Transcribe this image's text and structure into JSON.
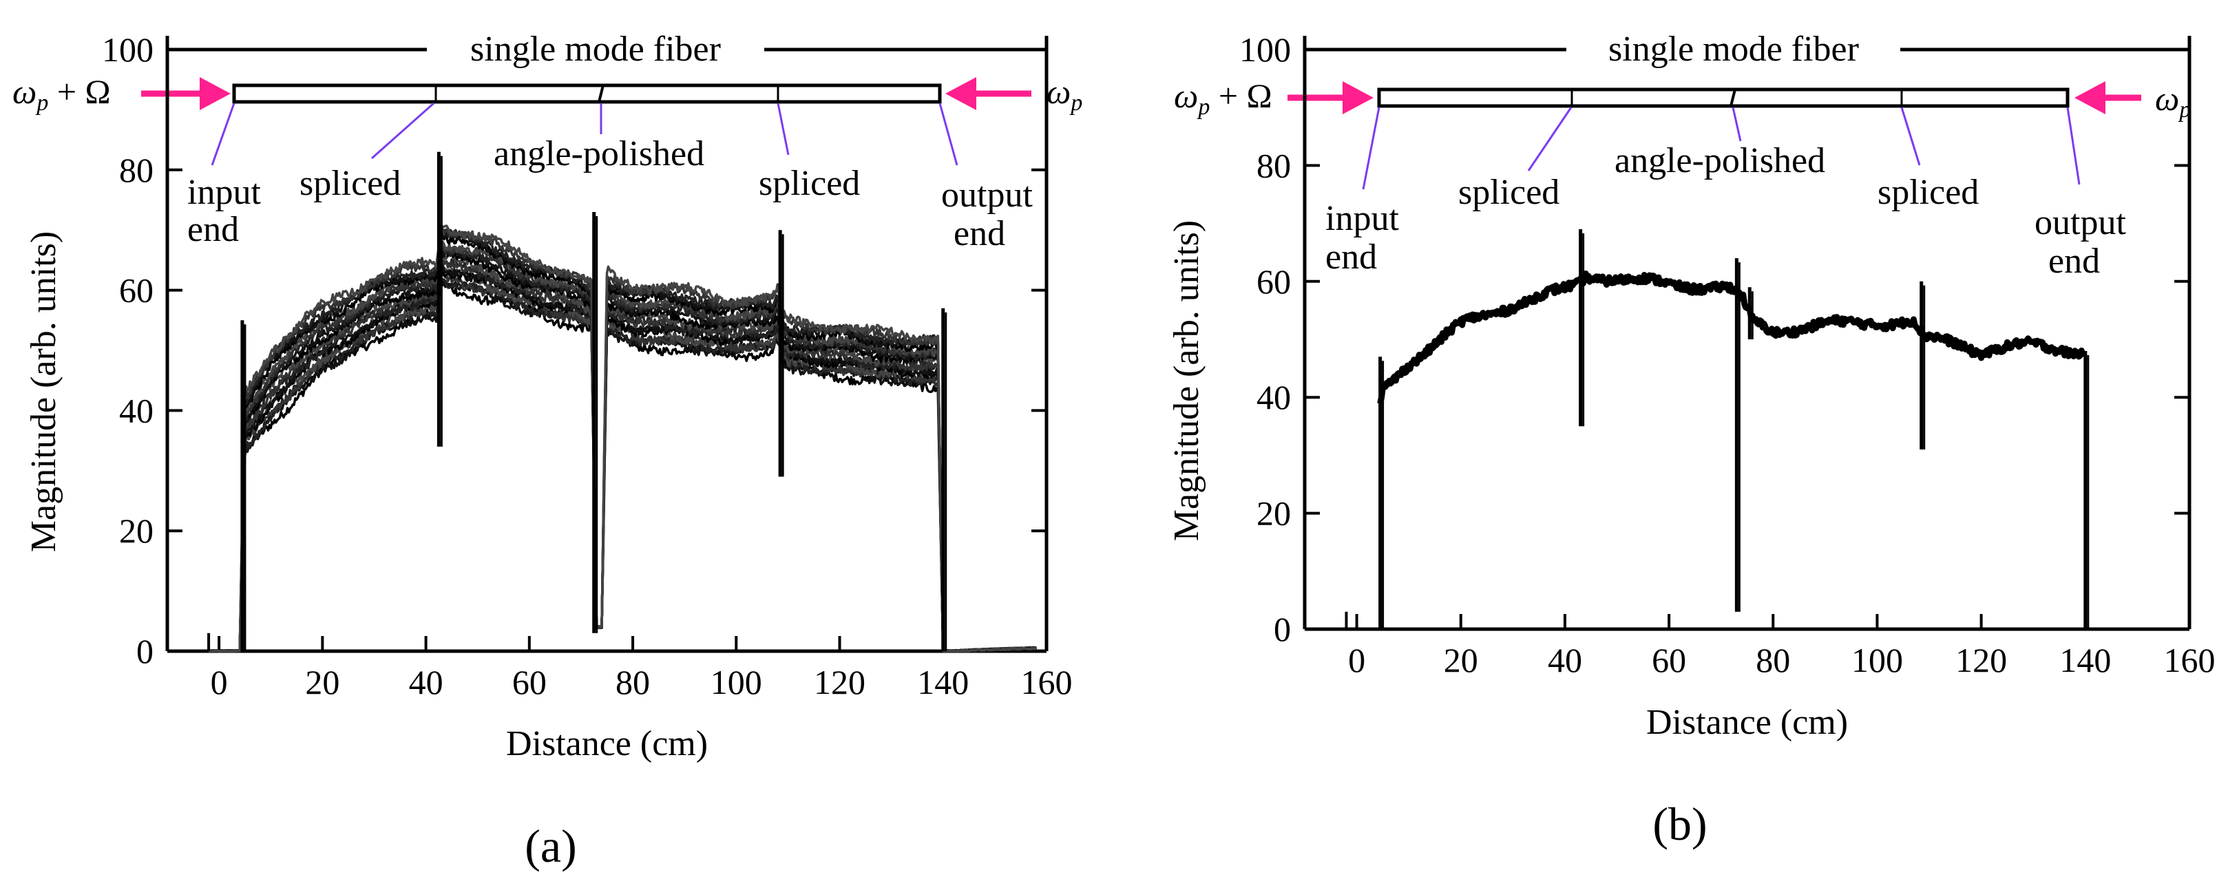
{
  "figure": {
    "panels": [
      {
        "id": "a",
        "caption": "(a)"
      },
      {
        "id": "b",
        "caption": "(b)"
      }
    ]
  },
  "fiber_diagram": {
    "title": "single mode fiber",
    "left_freq_main": "ω",
    "left_freq_sub": "p",
    "left_freq_suffix": " + Ω",
    "right_freq_main": "ω",
    "right_freq_sub": "p",
    "arrow_color": "#ff1f8e",
    "leader_color": "#7a3cf0",
    "labels": {
      "input_1": "input",
      "input_2": "end",
      "spliced_1": "spliced",
      "angle": "angle-polished",
      "spliced_2": "spliced",
      "output_1": "output",
      "output_2": "end"
    }
  },
  "chart_data": [
    {
      "type": "line",
      "panel": "(a)",
      "title": "",
      "xlabel": "Distance (cm)",
      "ylabel": "Magnitude (arb. units)",
      "xlim": [
        -10,
        160
      ],
      "ylim": [
        0,
        100
      ],
      "xticks": [
        0,
        20,
        40,
        60,
        80,
        100,
        120,
        140,
        160
      ],
      "yticks": [
        0,
        20,
        40,
        60,
        80,
        100
      ],
      "series_count": 20,
      "fiber_events_cm": {
        "input_end": 4.5,
        "splice_1": 42.5,
        "angle_polished": 73.5,
        "splice_2": 108.5,
        "output_end": 140
      },
      "traces": {
        "x": [
          -2,
          0,
          4,
          5,
          10,
          20,
          30,
          40,
          42,
          43,
          50,
          60,
          70,
          72,
          73,
          74,
          75,
          80,
          90,
          100,
          107,
          108,
          109,
          110,
          120,
          125,
          130,
          139,
          140,
          142,
          150,
          158
        ],
        "mean": [
          0,
          0,
          0,
          38,
          44,
          52,
          57,
          60,
          60,
          66,
          64,
          61,
          58,
          57,
          4,
          4,
          58,
          56,
          55,
          54,
          54,
          56,
          52,
          51,
          50,
          49,
          49,
          48,
          0,
          0,
          0.3,
          0.5
        ],
        "spread": [
          0,
          0,
          0,
          5,
          6,
          5.5,
          5,
          4.5,
          4.5,
          5,
          5,
          4.5,
          4,
          3.5,
          0,
          0,
          5,
          5,
          5,
          4.5,
          4.5,
          4.5,
          4,
          4,
          4,
          4,
          4,
          4,
          0,
          0,
          0,
          0
        ]
      },
      "spikes": [
        {
          "x": 4.5,
          "top": 55,
          "bottom": 0
        },
        {
          "x": 42.5,
          "top": 83,
          "bottom": 34
        },
        {
          "x": 72.5,
          "top": 73,
          "bottom": 3
        },
        {
          "x": 108.5,
          "top": 70,
          "bottom": 29
        },
        {
          "x": 140,
          "top": 57,
          "bottom": 0
        }
      ]
    },
    {
      "type": "line",
      "panel": "(b)",
      "title": "",
      "xlabel": "Distance (cm)",
      "ylabel": "Magnitude (arb. units)",
      "xlim": [
        -10,
        160
      ],
      "ylim": [
        0,
        100
      ],
      "xticks": [
        0,
        20,
        40,
        60,
        80,
        100,
        120,
        140,
        160
      ],
      "yticks": [
        0,
        20,
        40,
        60,
        80,
        100
      ],
      "series_count": 1,
      "fiber_events_cm": {
        "input_end": 4.5,
        "splice_1": 42.5,
        "angle_polished": 73.5,
        "splice_2": 108.5,
        "output_end": 140
      },
      "traces": {
        "x": [
          4.5,
          5,
          10,
          20,
          30,
          40,
          42.5,
          44,
          50,
          60,
          70,
          72,
          74,
          76,
          80,
          90,
          100,
          107,
          109,
          110,
          115,
          120,
          125,
          130,
          135,
          139.5
        ],
        "mean": [
          39,
          41,
          46,
          52.5,
          56,
          58.5,
          59.5,
          61,
          60.5,
          59.5,
          59,
          58.5,
          57,
          53,
          51.5,
          52.5,
          53,
          53,
          50,
          50,
          49.5,
          48,
          48.5,
          49,
          48.5,
          48
        ],
        "spread": [
          1.5,
          1.5,
          1.6,
          1.5,
          1.5,
          1.5,
          1.5,
          1.5,
          1.2,
          1.2,
          1.3,
          1.3,
          1.5,
          1.5,
          1.2,
          1.2,
          1.2,
          1.2,
          1.2,
          1.2,
          1.2,
          1.2,
          1.2,
          1.2,
          1.2,
          1.2
        ]
      },
      "spikes": [
        {
          "x": 4.5,
          "top": 47,
          "bottom": 0
        },
        {
          "x": 43,
          "top": 69,
          "bottom": 35
        },
        {
          "x": 73,
          "top": 64,
          "bottom": 3
        },
        {
          "x": 75.5,
          "top": 59,
          "bottom": 50
        },
        {
          "x": 108.5,
          "top": 60,
          "bottom": 31
        },
        {
          "x": 140,
          "top": 48,
          "bottom": 0
        }
      ]
    }
  ]
}
